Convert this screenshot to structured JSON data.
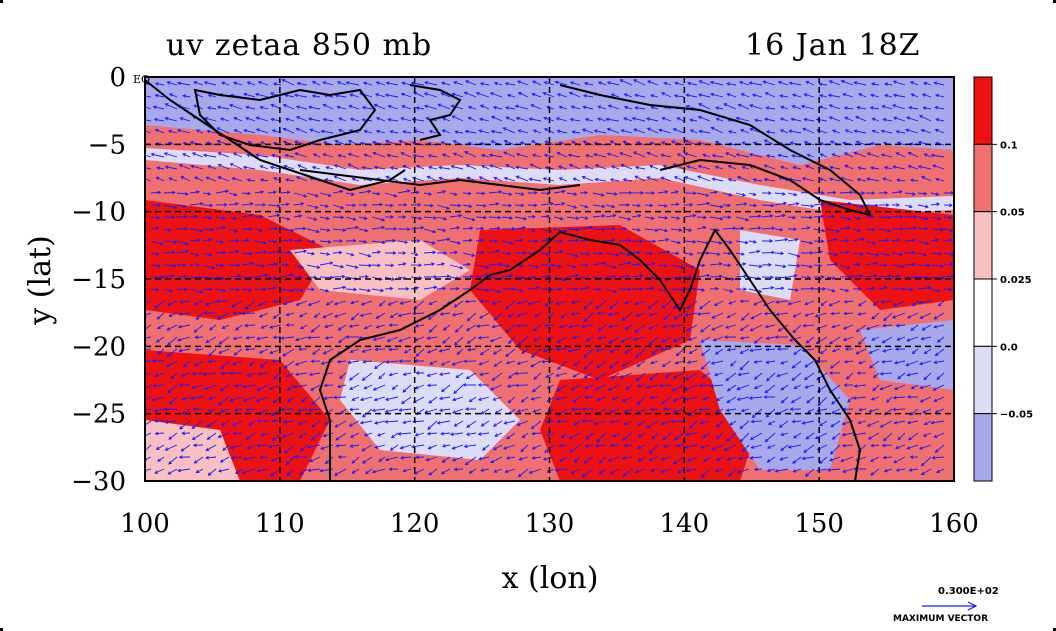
{
  "title_left": "uv zetaa 850 mb",
  "title_right": "16 Jan 18Z",
  "x_axis": {
    "label": "x (lon)",
    "ticks": [
      "100",
      "110",
      "120",
      "130",
      "140",
      "150",
      "160"
    ],
    "range": [
      100,
      160
    ]
  },
  "y_axis": {
    "label": "y (lat)",
    "ticks": [
      "0",
      "−5",
      "−10",
      "−15",
      "−20",
      "−25",
      "−30"
    ],
    "range": [
      0,
      -30
    ]
  },
  "eq_label": "EQ",
  "colorbar": {
    "levels": [
      "0.1",
      "0.05",
      "0.025",
      "0.0",
      "−0.05"
    ],
    "colors": [
      "#ee1111",
      "#f07070",
      "#f8c0c0",
      "#ffffff",
      "#dcdcf6",
      "#a8a8ea"
    ]
  },
  "max_vector": {
    "value": "0.300E+02",
    "label": "MAXIMUM VECTOR"
  },
  "colors": {
    "vector": "#1a1aff",
    "coast": "#000000",
    "grid": "#000000"
  }
}
